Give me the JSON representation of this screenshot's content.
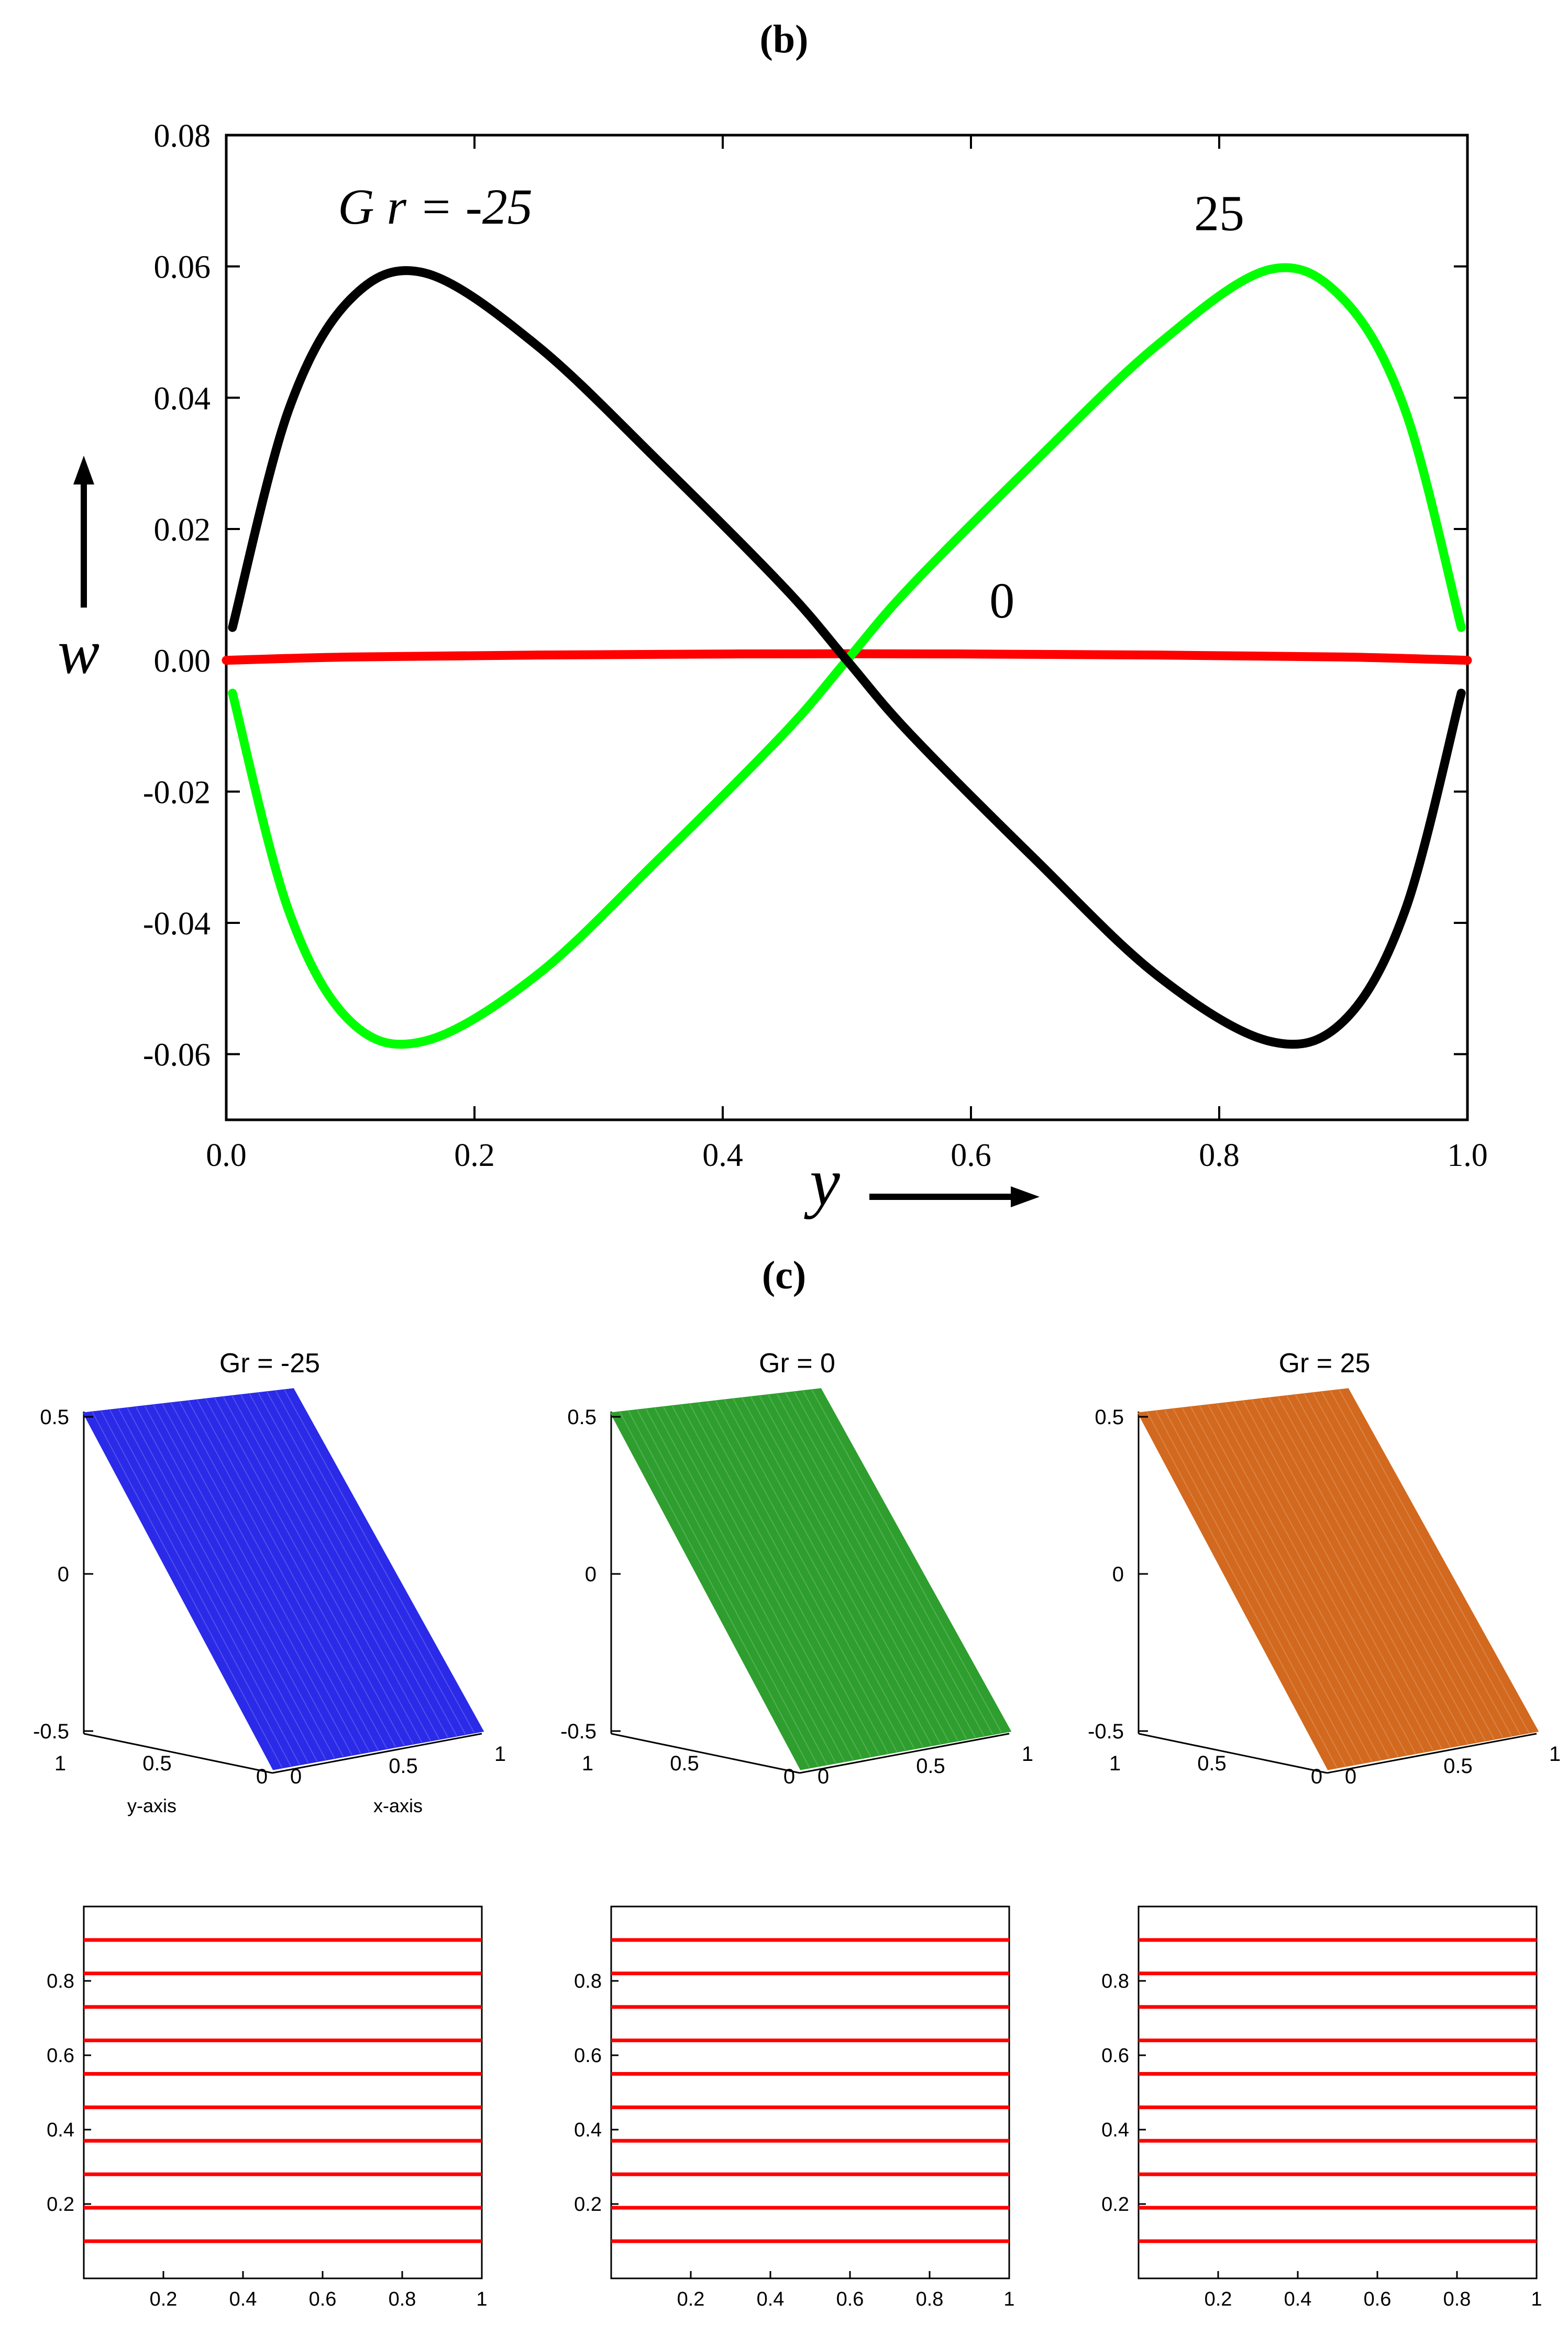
{
  "panel_b": {
    "label": "(b)",
    "chart_data": {
      "type": "line",
      "xlabel": "y",
      "ylabel": "w",
      "xlim": [
        0.0,
        1.0
      ],
      "ylim": [
        -0.07,
        0.08
      ],
      "x_ticks": [
        "0.0",
        "0.2",
        "0.4",
        "0.6",
        "0.8",
        "1.0"
      ],
      "y_ticks": [
        "0.08",
        "0.06",
        "0.04",
        "0.02",
        "0.00",
        "-0.02",
        "-0.04",
        "-0.06"
      ],
      "grid": false,
      "annotations": [
        {
          "text": "G r  =  -25",
          "series": "Gr = -25"
        },
        {
          "text": "25",
          "series": "Gr = 25"
        },
        {
          "text": "0",
          "series": "Gr = 0"
        }
      ],
      "series": [
        {
          "color": "#000000",
          "x": [
            0.005,
            0.05,
            0.1,
            0.16,
            0.25,
            0.35,
            0.45,
            0.5,
            0.55,
            0.65,
            0.75,
            0.84,
            0.9,
            0.95,
            0.995
          ],
          "y": [
            0.005,
            0.038,
            0.055,
            0.059,
            0.048,
            0.03,
            0.011,
            0.0,
            -0.011,
            -0.03,
            -0.048,
            -0.058,
            -0.055,
            -0.038,
            -0.005
          ]
        },
        {
          "color": "#000000",
          "x": [
            0.005,
            0.05,
            0.1,
            0.16,
            0.25,
            0.35,
            0.45,
            0.5
          ],
          "y": [
            -0.005,
            -0.038,
            -0.055,
            -0.058,
            -0.048,
            -0.03,
            -0.011,
            0.0
          ]
        },
        {
          "color": "#ff0000",
          "x": [
            0.0,
            0.1,
            0.25,
            0.5,
            0.75,
            0.9,
            1.0
          ],
          "y": [
            0.0,
            0.0005,
            0.0008,
            0.001,
            0.0008,
            0.0005,
            0.0
          ]
        }
      ],
      "series_named": [
        {
          "name": "Gr = -25",
          "color": "#000000",
          "x": [
            0.005,
            0.05,
            0.1,
            0.16,
            0.25,
            0.35,
            0.45,
            0.5,
            0.55,
            0.65,
            0.75,
            0.84,
            0.9,
            0.95,
            0.995
          ],
          "y": [
            0.005,
            0.038,
            0.055,
            0.059,
            0.048,
            0.03,
            0.011,
            0.0,
            -0.011,
            -0.03,
            -0.048,
            -0.058,
            -0.055,
            -0.038,
            -0.005
          ]
        },
        {
          "name": "Gr = 0",
          "color": "#ff0000",
          "x": [
            0.0,
            0.1,
            0.25,
            0.5,
            0.75,
            0.9,
            1.0
          ],
          "y": [
            0.0,
            0.0005,
            0.0008,
            0.001,
            0.0008,
            0.0005,
            0.0
          ]
        },
        {
          "name": "Gr = 25",
          "color": "#00ff00",
          "x": [
            0.005,
            0.05,
            0.1,
            0.16,
            0.25,
            0.35,
            0.45,
            0.5,
            0.55,
            0.65,
            0.75,
            0.84,
            0.9,
            0.95,
            0.995
          ],
          "y": [
            -0.005,
            -0.038,
            -0.055,
            -0.058,
            -0.048,
            -0.03,
            -0.011,
            0.0,
            0.011,
            0.03,
            0.048,
            0.0595,
            0.055,
            0.038,
            0.005
          ]
        }
      ]
    }
  },
  "panel_c": {
    "label": "(c)",
    "surfaces": [
      {
        "title": "Gr = -25",
        "color": "#2a2ae8",
        "show_axis_names": true
      },
      {
        "title": "Gr = 0",
        "color": "#2e9e2e",
        "show_axis_names": false
      },
      {
        "title": "Gr = 25",
        "color": "#d2691e",
        "show_axis_names": false
      }
    ],
    "surface_z_ticks": [
      "0.5",
      "0",
      "-0.5"
    ],
    "surface_y_ticks": [
      "1",
      "0.5",
      "0"
    ],
    "surface_x_ticks": [
      "0",
      "0.5",
      "1"
    ],
    "surface_y_label": "y-axis",
    "surface_x_label": "x-axis",
    "contours": {
      "line_color": "#ff0000",
      "x_ticks": [
        "0.2",
        "0.4",
        "0.6",
        "0.8",
        "1"
      ],
      "y_ticks": [
        "0.8",
        "0.6",
        "0.4",
        "0.2"
      ],
      "xlim": [
        0,
        1
      ],
      "ylim": [
        0,
        1
      ],
      "levels": [
        0.91,
        0.82,
        0.73,
        0.64,
        0.55,
        0.46,
        0.37,
        0.28,
        0.19,
        0.1
      ]
    }
  }
}
